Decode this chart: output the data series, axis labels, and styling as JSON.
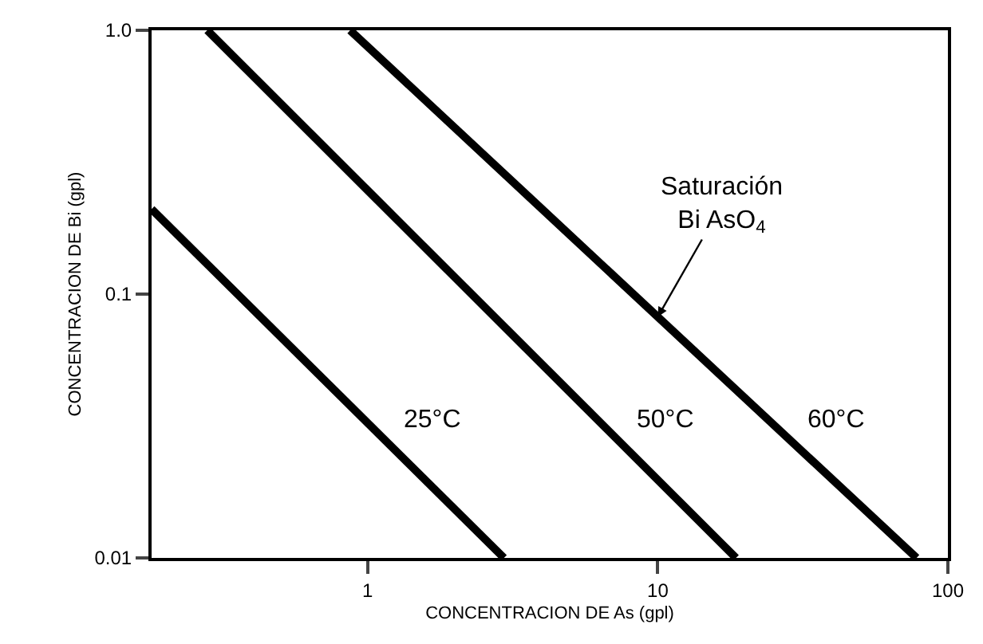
{
  "chart_data": {
    "type": "line",
    "xlabel": "CONCENTRACION DE As (gpl)",
    "ylabel": "CONCENTRACION DE Bi (gpl)",
    "log": "xy",
    "marker": "none",
    "line_style": "solid",
    "xlim": [
      0.18,
      100
    ],
    "ylim": [
      0.01,
      1
    ],
    "xticks": [
      1,
      10,
      100
    ],
    "yticks": [
      0.01,
      0.1,
      {
        "value": 1,
        "label": "1.0"
      }
    ],
    "series": [
      {
        "name": "25°C",
        "color": "#000000",
        "x": [
          0.18,
          2.95
        ],
        "values": [
          0.21,
          0.01
        ]
      },
      {
        "name": "50°C",
        "color": "#000000",
        "x": [
          0.28,
          18.6
        ],
        "values": [
          1,
          0.01
        ]
      },
      {
        "name": "60°C",
        "color": "#000000",
        "x": [
          0.87,
          78
        ],
        "values": [
          1,
          0.01
        ]
      }
    ],
    "annotations": [
      {
        "text": "Saturación\nBi AsO$_{4}$",
        "x": 10,
        "y": 0.082
      }
    ]
  }
}
